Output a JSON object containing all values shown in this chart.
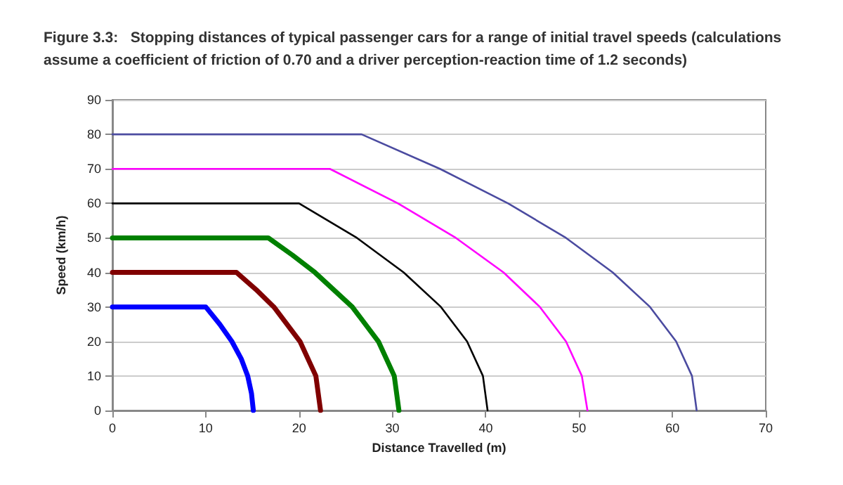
{
  "chart_data": {
    "type": "line",
    "title": "Figure 3.3:   Stopping distances of typical passenger cars for a range of initial travel speeds (calculations assume a coefficient of friction of 0.70 and a driver perception-reaction time of 1.2 seconds)",
    "xlabel": "Distance Travelled (m)",
    "ylabel": "Speed (km/h)",
    "xlim": [
      0,
      70
    ],
    "xticks": [
      0,
      10,
      20,
      30,
      40,
      50,
      60,
      70
    ],
    "ylim": [
      0,
      90
    ],
    "yticks": [
      0,
      10,
      20,
      30,
      40,
      50,
      60,
      70,
      80,
      90
    ],
    "grid": "y",
    "marker": "none",
    "line_style": "solid",
    "series": [
      {
        "color": "#0000ff",
        "x": [
          0,
          10,
          11.5,
          12.8,
          13.8,
          14.5,
          14.9,
          15.1
        ],
        "values": [
          30,
          30,
          25,
          20,
          15,
          10,
          5,
          0
        ]
      },
      {
        "color": "#800000",
        "x": [
          0,
          13.3,
          15.4,
          17.3,
          20.1,
          21.8,
          22.3
        ],
        "values": [
          40,
          40,
          35,
          30,
          20,
          10,
          0
        ]
      },
      {
        "color": "#008000",
        "x": [
          0,
          16.7,
          19.3,
          21.7,
          25.7,
          28.5,
          30.2,
          30.7
        ],
        "values": [
          50,
          50,
          45,
          40,
          30,
          20,
          10,
          0
        ]
      },
      {
        "color": "#000000",
        "x": [
          0,
          20,
          26.2,
          31.2,
          35.2,
          38,
          39.7,
          40.2
        ],
        "values": [
          60,
          60,
          50,
          40,
          30,
          20,
          10,
          0
        ]
      },
      {
        "color": "#ff00ff",
        "x": [
          0,
          23.3,
          30.6,
          36.8,
          41.9,
          45.8,
          48.6,
          50.3,
          50.9
        ],
        "values": [
          70,
          70,
          60,
          50,
          40,
          30,
          20,
          10,
          0
        ]
      },
      {
        "color": "#4b4ba0",
        "x": [
          0,
          26.7,
          35.1,
          42.4,
          48.6,
          53.6,
          57.6,
          60.4,
          62.1,
          62.6
        ],
        "values": [
          80,
          80,
          70,
          60,
          50,
          40,
          30,
          20,
          10,
          0
        ]
      }
    ]
  }
}
